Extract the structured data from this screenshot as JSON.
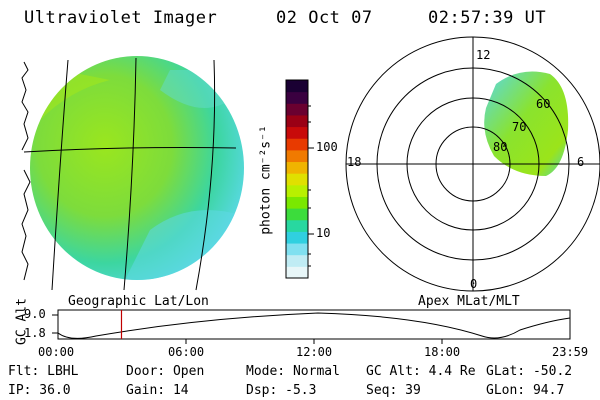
{
  "header": {
    "instrument": "Ultraviolet Imager",
    "date": "02 Oct 07",
    "time": "02:57:39 UT"
  },
  "geo_panel": {
    "label": "Geographic Lat/Lon"
  },
  "colorbar": {
    "unit_label": "photon cm⁻²s⁻¹",
    "ticks": [
      "100",
      "10"
    ],
    "colors": [
      "#1a0033",
      "#3a0040",
      "#6a0030",
      "#9a0015",
      "#c80a0a",
      "#e83a00",
      "#f07a00",
      "#f0b400",
      "#e0e000",
      "#b8f000",
      "#7ae800",
      "#3cdc3c",
      "#28d8a0",
      "#30d0e0",
      "#80e0f0",
      "#c0ecf4",
      "#e8f6f8"
    ]
  },
  "polar_panel": {
    "label": "Apex MLat/MLT",
    "mlt_labels": {
      "top": "12",
      "right": "6",
      "bottom": "0",
      "left": "18"
    },
    "lat_labels": [
      "60",
      "70",
      "80"
    ]
  },
  "altitude_plot": {
    "ylabel": "GC Alt",
    "yticks": [
      "9.0",
      "1.8"
    ],
    "xticks": [
      "00:00",
      "06:00",
      "12:00",
      "18:00",
      "23:59"
    ],
    "current_time_fraction": 0.124
  },
  "info": {
    "row1": {
      "flt": "Flt: LBHL",
      "door": "Door: Open",
      "mode": "Mode: Normal",
      "gcalt": "GC Alt: 4.4 Re",
      "glat": "GLat: -50.2"
    },
    "row2": {
      "ip": "IP: 36.0",
      "gain": "Gain: 14",
      "dsp": "Dsp:   -5.3",
      "seq": "Seq: 39",
      "glon": "GLon: 94.7"
    }
  }
}
